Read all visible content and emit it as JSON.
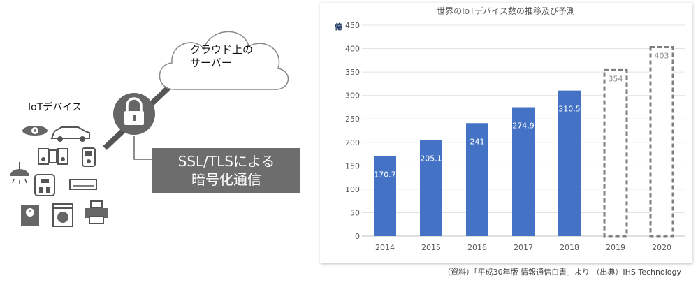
{
  "diagram": {
    "cloud_label": "クラウド上の\nサーバー",
    "devices_label": "IoTデバイス",
    "ssl_label_line1": "SSL/TLSによる",
    "ssl_label_line2": "暗号化通信"
  },
  "chart_data": {
    "type": "bar",
    "title": "世界のIoTデバイス数の推移及び予測",
    "ylabel": "億",
    "categories": [
      "2014",
      "2015",
      "2016",
      "2017",
      "2018",
      "2019",
      "2020"
    ],
    "values": [
      170.7,
      205.1,
      241,
      274.9,
      310.5,
      354,
      403
    ],
    "value_labels": [
      "170.7",
      "205.1",
      "241",
      "274.9",
      "310.5",
      "354",
      "403"
    ],
    "forecast": [
      false,
      false,
      false,
      false,
      false,
      true,
      true
    ],
    "ylim": [
      0,
      450
    ],
    "yticks": [
      0,
      50,
      100,
      150,
      200,
      250,
      300,
      350,
      400,
      450
    ],
    "grid": true,
    "colors": {
      "bar": "#4472c4",
      "bar_dark": "#2f5aa8",
      "forecast_border": "#7f7f7f"
    }
  },
  "source_note": "（資料）「平成30年版 情報通信白書」より （出典）IHS Technology"
}
